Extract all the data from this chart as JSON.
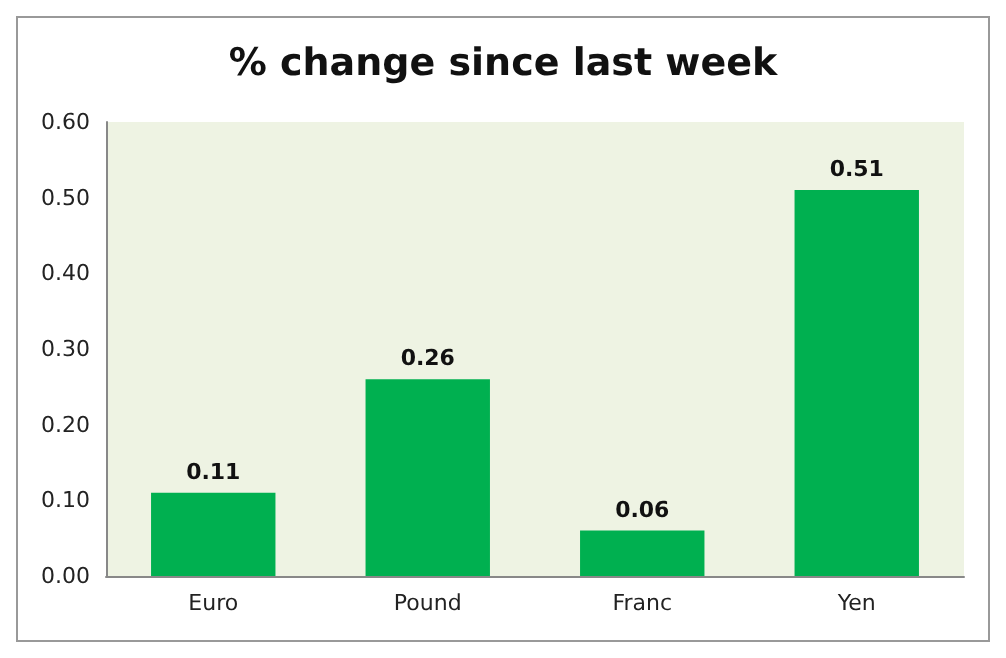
{
  "chart_data": {
    "type": "bar",
    "title": "% change since last week",
    "categories": [
      "Euro",
      "Pound",
      "Franc",
      "Yen"
    ],
    "values": [
      0.11,
      0.26,
      0.06,
      0.51
    ],
    "color": "#00b050",
    "ylim": [
      0,
      0.6
    ],
    "yticks": [
      {
        "value": 0,
        "label": "0.00"
      },
      {
        "value": 0.1,
        "label": "0.10"
      },
      {
        "value": 0.2,
        "label": "0.20"
      },
      {
        "value": 0.3,
        "label": "0.30"
      },
      {
        "value": 0.4,
        "label": "0.40"
      },
      {
        "value": 0.5,
        "label": "0.50"
      },
      {
        "value": 0.6,
        "label": "0.60"
      }
    ],
    "data_labels": true,
    "grid": false
  }
}
